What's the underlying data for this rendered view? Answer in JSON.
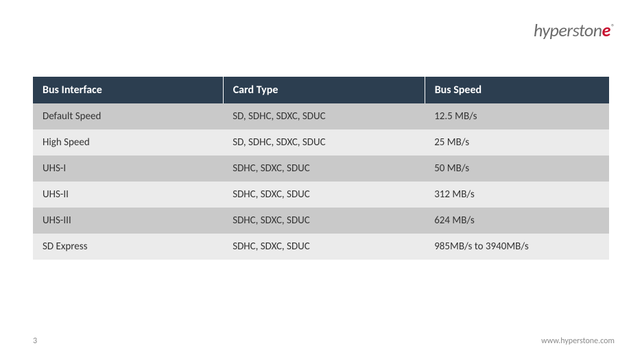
{
  "logo": {
    "part1": "hyperst",
    "part2": "on",
    "accent": "e",
    "reg": "®"
  },
  "table": {
    "header_bg": "#2c3e50",
    "header_fg": "#ffffff",
    "row_odd_bg": "#c9c9c9",
    "row_even_bg": "#ebebeb",
    "text_color": "#333333",
    "header_fontsize": 16,
    "cell_fontsize": 15,
    "columns": [
      "Bus Interface",
      "Card Type",
      "Bus Speed"
    ],
    "rows": [
      [
        "Default Speed",
        "SD, SDHC, SDXC, SDUC",
        "12.5 MB/s"
      ],
      [
        "High Speed",
        "SD, SDHC, SDXC, SDUC",
        "25 MB/s"
      ],
      [
        "UHS-I",
        "SDHC, SDXC, SDUC",
        "50 MB/s"
      ],
      [
        "UHS-II",
        "SDHC, SDXC, SDUC",
        "312 MB/s"
      ],
      [
        "UHS-III",
        "SDHC, SDXC, SDUC",
        "624 MB/s"
      ],
      [
        "SD Express",
        "SDHC, SDXC, SDUC",
        "985MB/s to 3940MB/s"
      ]
    ]
  },
  "footer": {
    "page_number": "3",
    "url": "www.hyperstone.com"
  }
}
